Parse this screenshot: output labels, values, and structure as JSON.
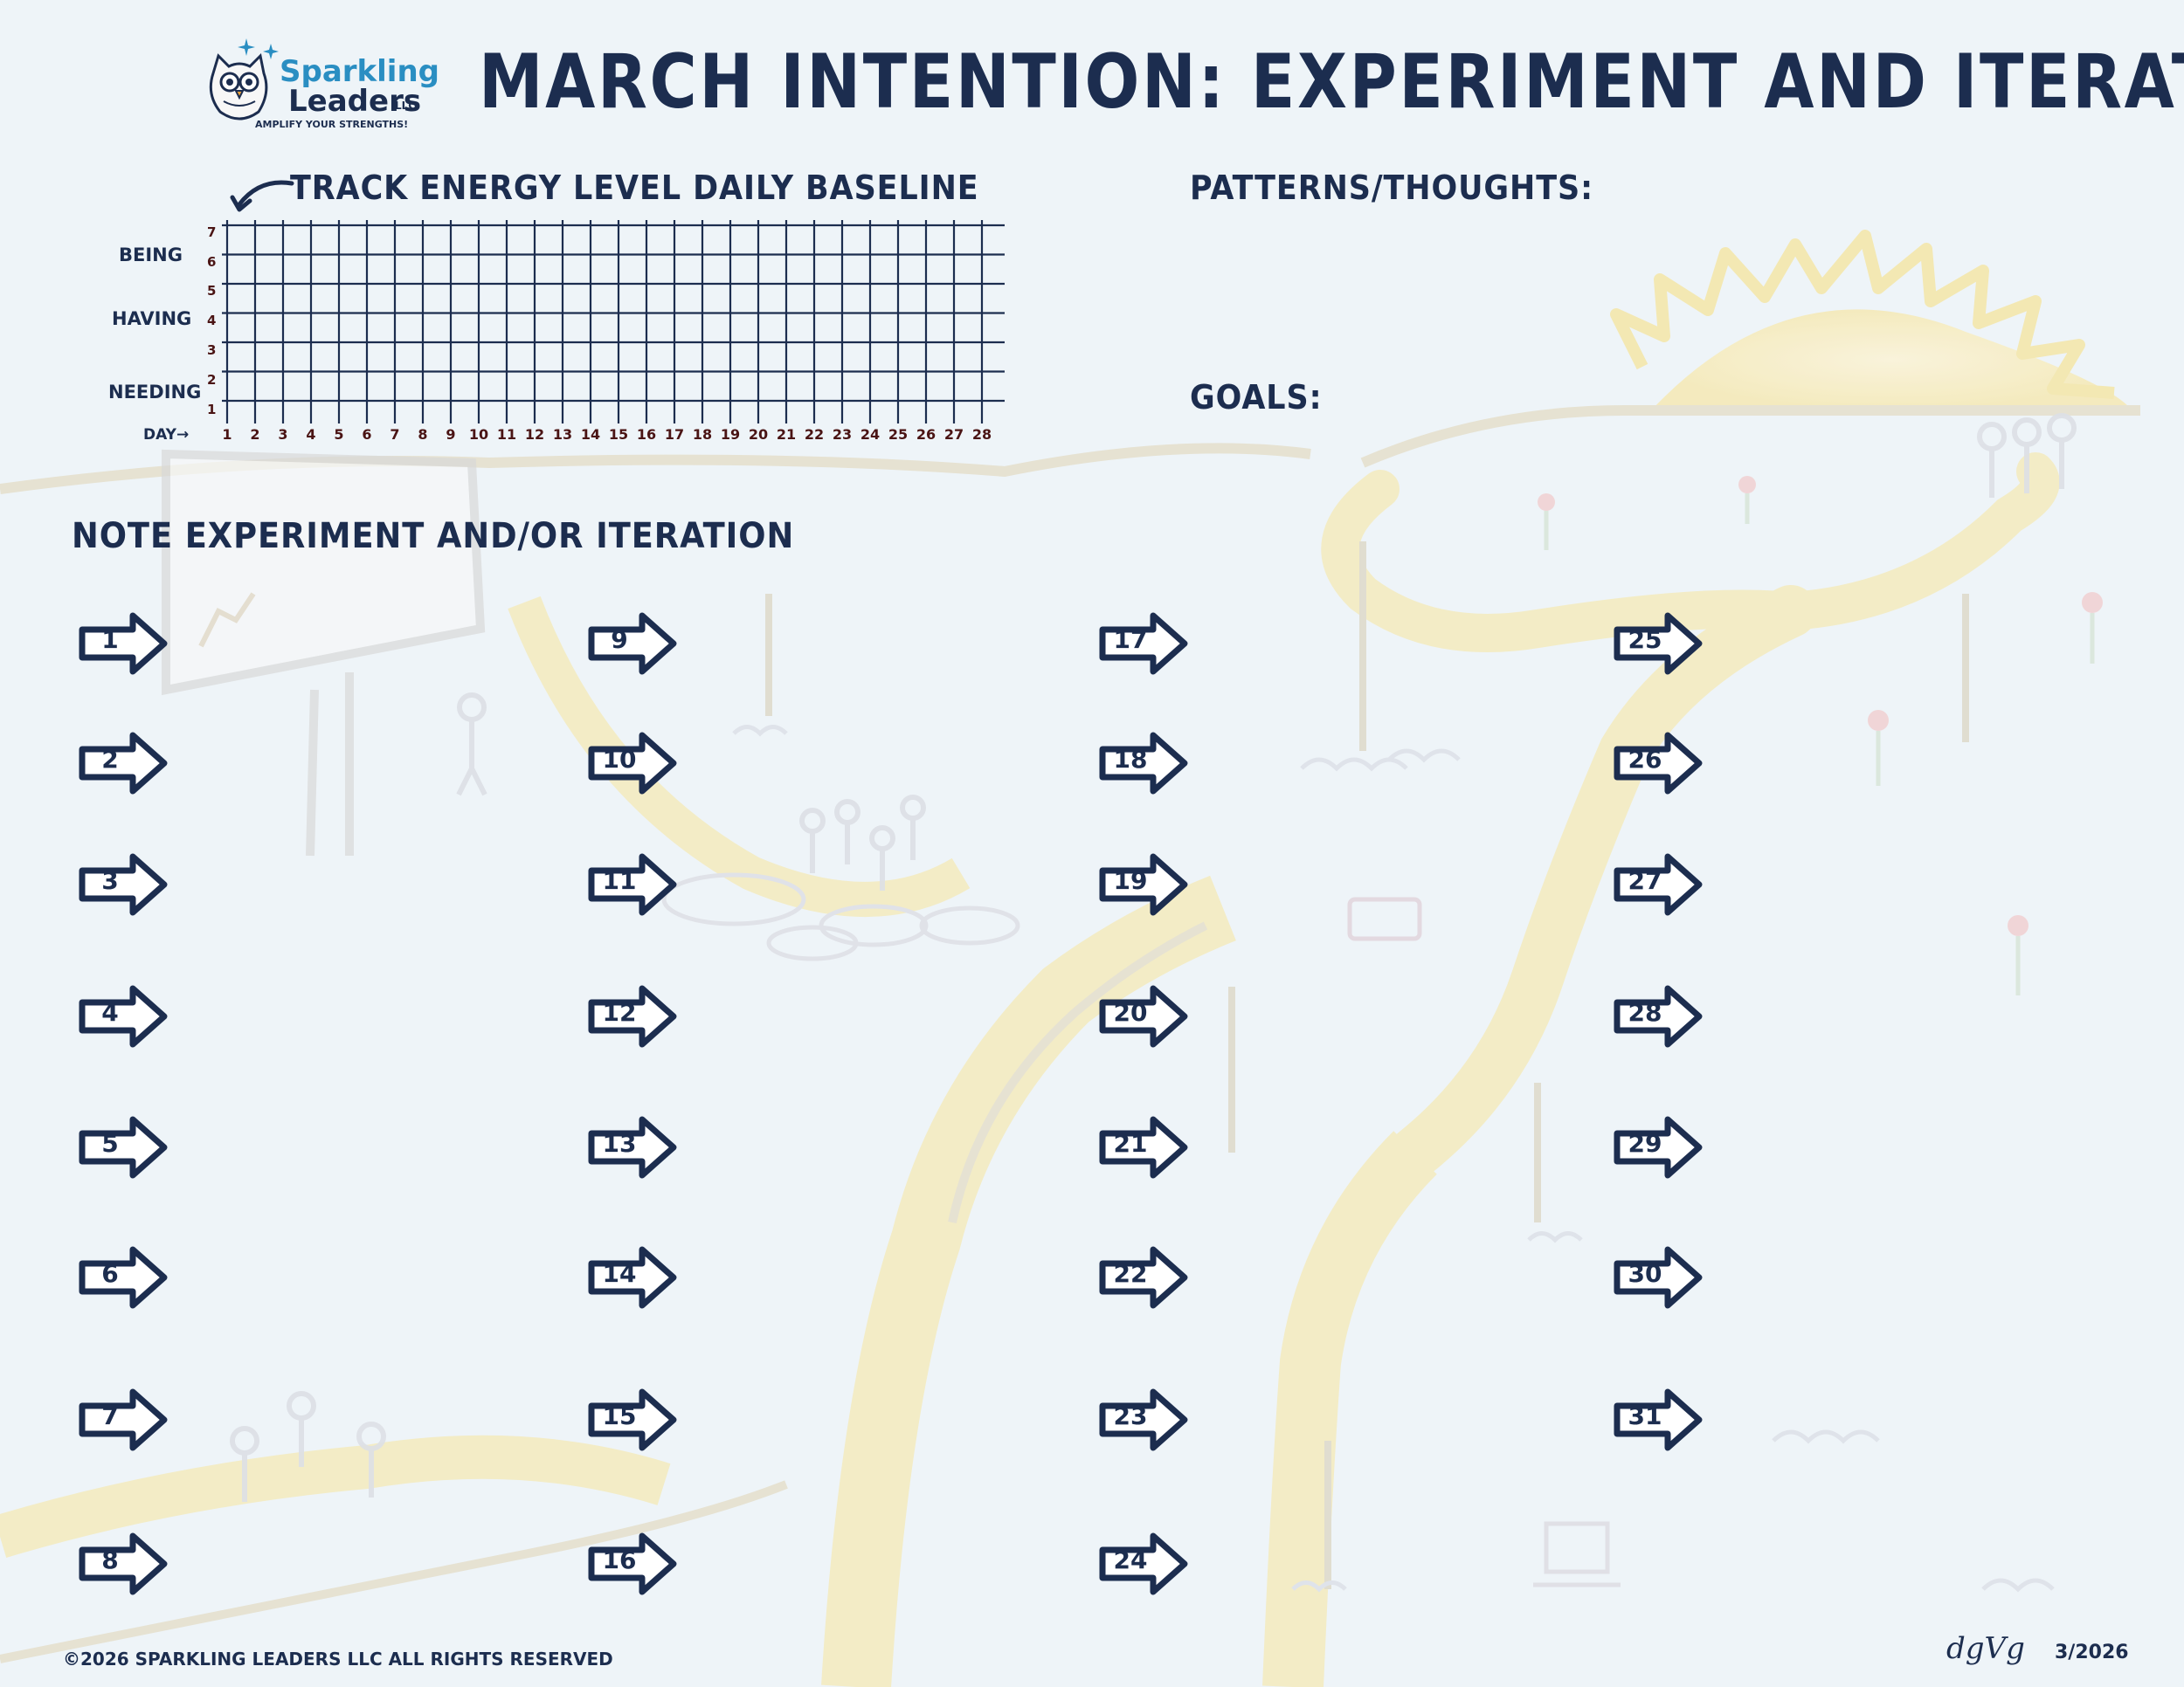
{
  "logo": {
    "brand_line1": "Sparkling",
    "brand_line2": "Leaders",
    "brand_suffix": "LLC",
    "tagline": "AMPLIFY YOUR STRENGTHS!",
    "icon": "owl-icon"
  },
  "title": "MARCH INTENTION: EXPERIMENT AND ITERATE",
  "tracker": {
    "heading": "TRACK ENERGY LEVEL DAILY BASELINE",
    "arrow_icon": "curved-arrow-icon",
    "y_labels": [
      "BEING",
      "HAVING",
      "NEEDING"
    ],
    "y_ticks": [
      "7",
      "6",
      "5",
      "4",
      "3",
      "2",
      "1"
    ],
    "x_prefix": "DAY→",
    "days": [
      "1",
      "2",
      "3",
      "4",
      "5",
      "6",
      "7",
      "8",
      "9",
      "10",
      "11",
      "12",
      "13",
      "14",
      "15",
      "16",
      "17",
      "18",
      "19",
      "20",
      "21",
      "22",
      "23",
      "24",
      "25",
      "26",
      "27",
      "28"
    ]
  },
  "patterns_heading": "PATTERNS/THOUGHTS:",
  "goals_heading": "GOALS:",
  "notes_heading": "NOTE EXPERIMENT AND/OR ITERATION",
  "day_arrows": [
    "1",
    "2",
    "3",
    "4",
    "5",
    "6",
    "7",
    "8",
    "9",
    "10",
    "11",
    "12",
    "13",
    "14",
    "15",
    "16",
    "17",
    "18",
    "19",
    "20",
    "21",
    "22",
    "23",
    "24",
    "25",
    "26",
    "27",
    "28",
    "29",
    "30",
    "31"
  ],
  "footer": {
    "copyright": "©2026 SPARKLING LEADERS LLC  ALL RIGHTS RESERVED",
    "signature": "dgVg",
    "date": "3/2026"
  },
  "colors": {
    "ink": "#1c2d4f",
    "accent": "#2a8ec2",
    "background": "#eef4f8",
    "tick_red": "#4a1414"
  }
}
